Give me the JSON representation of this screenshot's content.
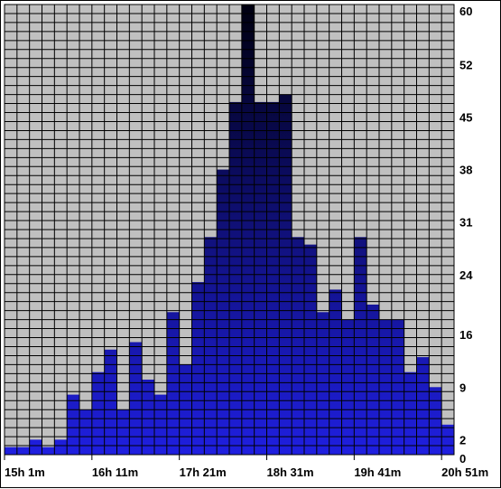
{
  "colors": {
    "plot_background": "#c0c0c0",
    "grid": "#000000",
    "bar_low": "#1f1fe0",
    "bar_high": "#000010"
  },
  "chart_data": {
    "type": "bar",
    "title": "",
    "xlabel": "",
    "ylabel": "",
    "ylim": [
      0,
      60
    ],
    "y_tick_labels": [
      "60",
      "52",
      "45",
      "38",
      "31",
      "24",
      "16",
      "9",
      "2",
      "0"
    ],
    "x_tick_labels": [
      "15h 1m",
      "16h 11m",
      "17h 21m",
      "18h 31m",
      "19h 41m",
      "20h 51m"
    ],
    "grid": true,
    "values": [
      1,
      1,
      2,
      1,
      2,
      8,
      6,
      11,
      14,
      6,
      15,
      10,
      8,
      19,
      12,
      23,
      29,
      38,
      47,
      60,
      47,
      47,
      48,
      29,
      28,
      19,
      22,
      18,
      29,
      20,
      18,
      18,
      11,
      13,
      9,
      4
    ]
  }
}
